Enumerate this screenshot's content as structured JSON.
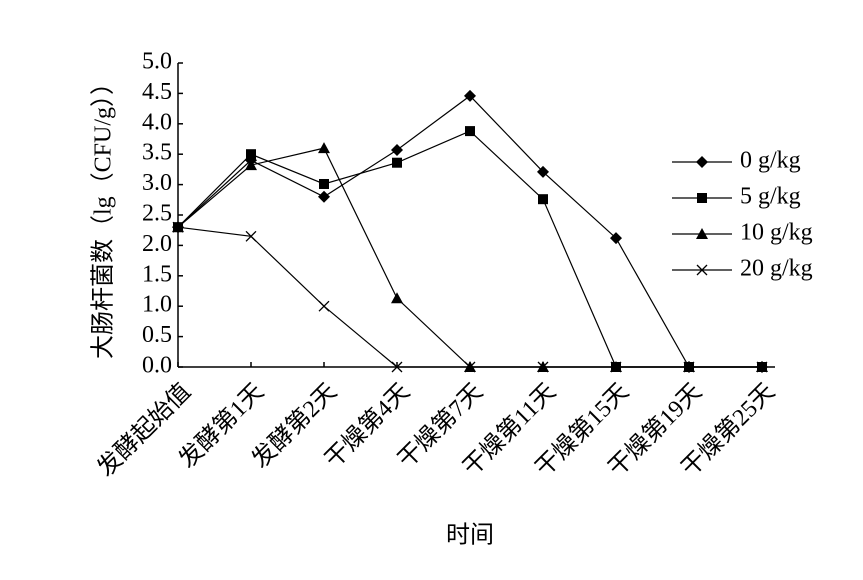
{
  "chart_data": {
    "type": "line",
    "y_label": "大肠杆菌数（lg（CFU/g））",
    "x_label": "时间",
    "categories": [
      "发酵起始值",
      "发酵第1天",
      "发酵第2天",
      "干燥第4天",
      "干燥第7天",
      "干燥第11天",
      "干燥第15天",
      "干燥第19天",
      "干燥第25天"
    ],
    "series": [
      {
        "name": "0 g/kg",
        "color": "#000000",
        "marker": "diamond",
        "values": [
          2.3,
          3.4,
          2.8,
          3.57,
          4.46,
          3.21,
          2.12,
          0,
          0
        ]
      },
      {
        "name": "5 g/kg",
        "color": "#000000",
        "marker": "square",
        "values": [
          2.3,
          3.5,
          3.01,
          3.36,
          3.88,
          2.76,
          0,
          0,
          0
        ]
      },
      {
        "name": "10 g/kg",
        "color": "#000000",
        "marker": "triangle",
        "values": [
          2.3,
          3.32,
          3.6,
          1.13,
          0,
          0,
          0,
          0,
          0
        ]
      },
      {
        "name": "20 g/kg",
        "color": "#000000",
        "marker": "x",
        "values": [
          2.3,
          2.15,
          1.0,
          0,
          0,
          0,
          0,
          0,
          0
        ]
      }
    ],
    "ylim": [
      0,
      5
    ],
    "yticks": [
      {
        "value": 0,
        "label": "0.0"
      },
      0.5,
      {
        "value": 1,
        "label": "1.0"
      },
      1.5,
      {
        "value": 2,
        "label": "2.0"
      },
      2.5,
      {
        "value": 3,
        "label": "3.0"
      },
      3.5,
      {
        "value": 4,
        "label": "4.0"
      },
      4.5,
      {
        "value": 5,
        "label": "5.0"
      }
    ],
    "legend": "right"
  }
}
